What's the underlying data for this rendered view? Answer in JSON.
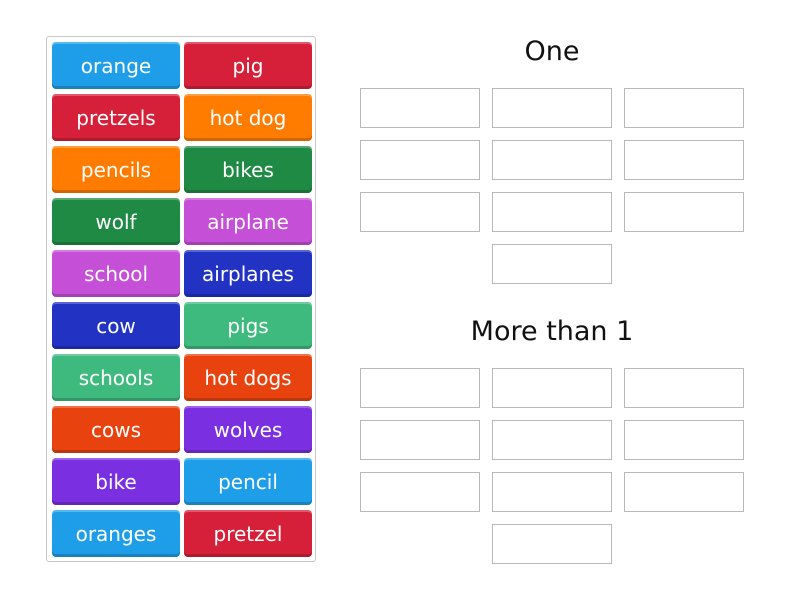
{
  "tiles": [
    {
      "label": "orange",
      "color": "#1e9ee8"
    },
    {
      "label": "pig",
      "color": "#d6203a"
    },
    {
      "label": "pretzels",
      "color": "#d6203a"
    },
    {
      "label": "hot dog",
      "color": "#ff7c00"
    },
    {
      "label": "pencils",
      "color": "#ff7c00"
    },
    {
      "label": "bikes",
      "color": "#1f8a44"
    },
    {
      "label": "wolf",
      "color": "#1f8a44"
    },
    {
      "label": "airplane",
      "color": "#c54fd6"
    },
    {
      "label": "school",
      "color": "#c54fd6"
    },
    {
      "label": "airplanes",
      "color": "#2233c4"
    },
    {
      "label": "cow",
      "color": "#2233c4"
    },
    {
      "label": "pigs",
      "color": "#3fba7f"
    },
    {
      "label": "schools",
      "color": "#3fba7f"
    },
    {
      "label": "hot dogs",
      "color": "#e8420e"
    },
    {
      "label": "cows",
      "color": "#e8420e"
    },
    {
      "label": "wolves",
      "color": "#7a2fe0"
    },
    {
      "label": "bike",
      "color": "#7a2fe0"
    },
    {
      "label": "pencil",
      "color": "#1e9ee8"
    },
    {
      "label": "oranges",
      "color": "#1e9ee8"
    },
    {
      "label": "pretzel",
      "color": "#d6203a"
    }
  ],
  "groups": [
    {
      "title": "One",
      "slots": 10
    },
    {
      "title": "More than 1",
      "slots": 10
    }
  ]
}
